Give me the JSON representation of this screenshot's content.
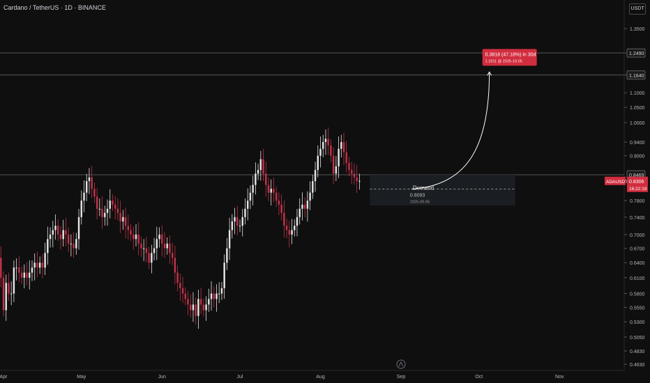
{
  "header": {
    "title": "Cardano / TetherUS · 1D · BINANCE",
    "currency": "USDT"
  },
  "colors": {
    "background": "#0f0f0f",
    "bull": "#e6e6e6",
    "bear": "#c2334a",
    "label_bg": "#d12d3e",
    "axis_text": "#b2b5be"
  },
  "chart_data": {
    "type": "candlestick",
    "symbol": "ADAUSDT",
    "price_scale": "log",
    "ylim": [
      0.45,
      1.45
    ],
    "y_ticks": [
      "1.3500",
      "1.2490",
      "1.1640",
      "1.1000",
      "1.0500",
      "1.0000",
      "0.9400",
      "0.9000",
      "0.8469",
      "0.8306",
      "0.7800",
      "0.7400",
      "0.7000",
      "0.6700",
      "0.6400",
      "0.6100",
      "0.5800",
      "0.5550",
      "0.5300",
      "0.5050",
      "0.4830",
      "0.4630"
    ],
    "x_ticks": [
      {
        "label": "Apr",
        "date": "2025-04-01"
      },
      {
        "label": "May",
        "date": "2025-05-01"
      },
      {
        "label": "Jun",
        "date": "2025-06-01"
      },
      {
        "label": "Jul",
        "date": "2025-07-01"
      },
      {
        "label": "Aug",
        "date": "2025-08-01"
      },
      {
        "label": "Sep",
        "date": "2025-09-01"
      },
      {
        "label": "Oct",
        "date": "2025-10-01"
      },
      {
        "label": "Nov",
        "date": "2025-11-01"
      }
    ],
    "first_date": "2025-03-25",
    "closes": [
      0.71,
      0.66,
      0.69,
      0.67,
      0.64,
      0.65,
      0.61,
      0.55,
      0.6,
      0.58,
      0.58,
      0.63,
      0.63,
      0.62,
      0.61,
      0.62,
      0.61,
      0.62,
      0.63,
      0.64,
      0.63,
      0.64,
      0.63,
      0.66,
      0.69,
      0.7,
      0.71,
      0.72,
      0.7,
      0.69,
      0.71,
      0.7,
      0.68,
      0.68,
      0.67,
      0.69,
      0.74,
      0.78,
      0.8,
      0.83,
      0.84,
      0.81,
      0.79,
      0.76,
      0.76,
      0.74,
      0.75,
      0.76,
      0.78,
      0.77,
      0.76,
      0.75,
      0.73,
      0.74,
      0.72,
      0.71,
      0.7,
      0.69,
      0.7,
      0.68,
      0.67,
      0.67,
      0.66,
      0.64,
      0.66,
      0.67,
      0.69,
      0.7,
      0.68,
      0.67,
      0.68,
      0.66,
      0.65,
      0.62,
      0.6,
      0.59,
      0.58,
      0.57,
      0.56,
      0.55,
      0.56,
      0.54,
      0.57,
      0.56,
      0.55,
      0.56,
      0.57,
      0.58,
      0.57,
      0.58,
      0.58,
      0.59,
      0.64,
      0.67,
      0.71,
      0.73,
      0.74,
      0.72,
      0.72,
      0.74,
      0.76,
      0.78,
      0.8,
      0.82,
      0.85,
      0.86,
      0.89,
      0.85,
      0.82,
      0.8,
      0.81,
      0.8,
      0.78,
      0.77,
      0.75,
      0.72,
      0.71,
      0.7,
      0.71,
      0.72,
      0.74,
      0.76,
      0.77,
      0.76,
      0.78,
      0.8,
      0.83,
      0.86,
      0.9,
      0.92,
      0.94,
      0.95,
      0.93,
      0.9,
      0.85,
      0.87,
      0.92,
      0.94,
      0.91,
      0.88,
      0.86,
      0.85,
      0.84,
      0.83,
      0.8306
    ],
    "horizontal_lines": [
      1.249,
      1.164,
      0.8469
    ],
    "zones": [
      {
        "label": "Demand",
        "value": 0.8093,
        "date": "2025-09-05",
        "top": 0.8469,
        "bottom": 0.768,
        "date_end": "2025-10-15"
      }
    ],
    "projection": {
      "from": 0.8093,
      "target": 1.1911,
      "target_date": "2025-10-05",
      "change": "0.3818 (47.18%) in 30d",
      "detail": "1.1911 @ 2025-10-05"
    },
    "price_labels": {
      "current_symbol": "ADAUSDT",
      "current_price": "0.8306",
      "countdown": "16:22:19",
      "line_1249": "1.2490",
      "line_1164": "1.1640",
      "line_08469": "0.8469"
    }
  }
}
